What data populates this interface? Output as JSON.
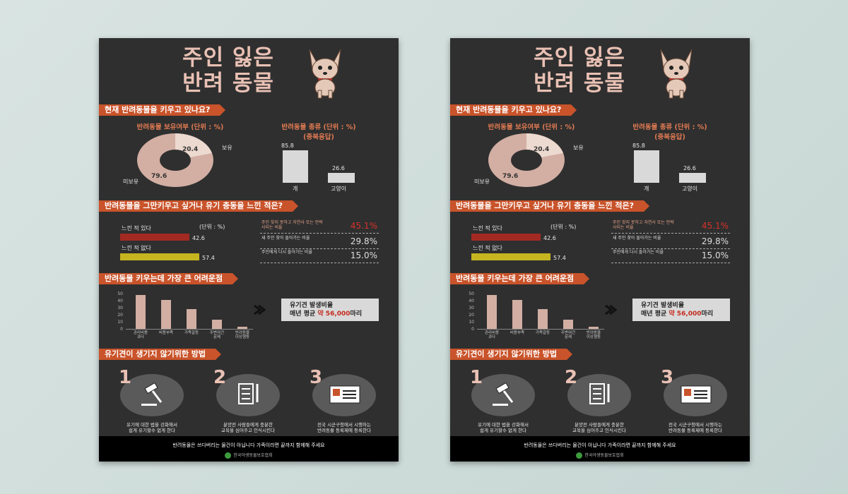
{
  "title_line1": "주인 잃은",
  "title_line2": "반려 동물",
  "section1": "현재 반려동물을 키우고 있나요?",
  "ownership_title": "반려동물 보유여부 (단위 : %)",
  "ownership_own_label": "보유",
  "ownership_own_value": "20.4",
  "ownership_not_label": "미보유",
  "ownership_not_value": "79.6",
  "types_title": "반려동물 종류 (단위 : %)",
  "types_subtitle": "(중복응답)",
  "chart_data": [
    {
      "type": "pie",
      "categories": [
        "보유",
        "미보유"
      ],
      "values": [
        20.4,
        79.6
      ],
      "title": "반려동물 보유여부 (단위 : %)"
    },
    {
      "type": "bar",
      "categories": [
        "개",
        "고양이"
      ],
      "values": [
        85.8,
        26.6
      ],
      "title": "반려동물 종류 (단위 : %)"
    },
    {
      "type": "bar",
      "categories": [
        "느낀 적 있다",
        "느낀 적 없다"
      ],
      "values": [
        42.6,
        57.4
      ]
    },
    {
      "type": "bar",
      "categories": [
        "관리비용 과다",
        "비용부족",
        "가족갈등",
        "주변여건 문제",
        "반려동물 이상행동"
      ],
      "values": [
        48,
        41,
        28,
        13,
        3
      ],
      "ylim": [
        0,
        50
      ]
    }
  ],
  "dog_label": "개",
  "dog_value": "85.8",
  "cat_label": "고양이",
  "cat_value": "26.6",
  "section2": "반려동물을 그만키우고 싶거나 유기 충동을 느낀 적은?",
  "unit": "(단위 : %)",
  "felt_yes_label": "느낀 적 있다",
  "felt_yes_value": "42.6",
  "felt_no_label": "느낀 적 없다",
  "felt_no_value": "57.4",
  "stat1_label": "주인 찾지 못하고 자연사 또는 안락사되는 비율",
  "stat1_pct": "45.1%",
  "stat2_label": "새 주인 찾아 돌아가는 비율",
  "stat2_pct": "29.8%",
  "stat3_label": "주인에게 다시 돌아가는 비율",
  "stat3_pct": "15.0%",
  "section3": "반려동물 키우는데 가장 큰 어려운점",
  "ticks": [
    "50",
    "40",
    "30",
    "20",
    "10",
    "0"
  ],
  "diff_labels": [
    "관리비용\n과다",
    "비용부족",
    "가족갈등",
    "주변여건\n문제",
    "반려동물\n이상행동"
  ],
  "callout_line1": "유기견 발생비율",
  "callout_line2_a": "매년 평균 ",
  "callout_line2_b": "약 56,000",
  "callout_line2_c": "마리",
  "section4": "유기견이 생기지 않기위한 방법",
  "method1_num": "1",
  "method1_text": "유기에 대한 법을 강화해서\n쉽게 유기할수 없게 한다",
  "method2_num": "2",
  "method2_text": "분양전 사람들에게 충분한\n교육을 심어주고 인식시킨다",
  "method3_num": "3",
  "method3_text": "전국 시군구청에서 시행하는\n반려동물 등록제에 등록한다",
  "footer_msg": "반려동물은 쓰다버리는 물건이 아닙니다 가족이라면 끝까지 함께해 주세요",
  "footer_org": "한국야생동물보호협회",
  "colors": {
    "accent": "#c9532a",
    "pink": "#e9c1b4",
    "bar_dark": "#a32a22",
    "bar_yellow": "#c6b420",
    "poster_bg": "#2f2f2f"
  }
}
